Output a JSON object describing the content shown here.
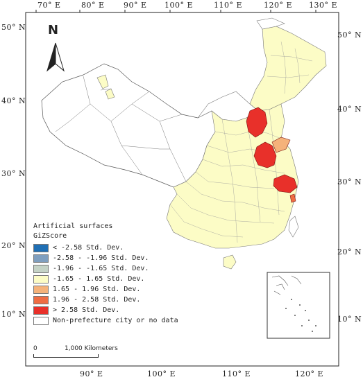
{
  "map": {
    "top_ticks": [
      "70° E",
      "80° E",
      "90° E",
      "100° E",
      "110° E",
      "120° E",
      "130° E"
    ],
    "bottom_ticks": [
      "90° E",
      "100° E",
      "110° E",
      "120° E"
    ],
    "left_ticks": [
      "50° N",
      "40° N",
      "30° N",
      "20° N",
      "10° N"
    ],
    "right_ticks": [
      "50° N",
      "40° N",
      "30° N",
      "20° N",
      "10° N"
    ],
    "north_label": "N"
  },
  "legend": {
    "title1": "Artificial surfaces",
    "title2": "GiZScore",
    "items": [
      {
        "label": "< -2.58 Std. Dev.",
        "color": "#1f6fb4"
      },
      {
        "label": "-2.58 - -1.96 Std. Dev.",
        "color": "#7f9fbf"
      },
      {
        "label": "-1.96 - -1.65 Std. Dev.",
        "color": "#c5d3c6"
      },
      {
        "label": "-1.65 - 1.65 Std. Dev.",
        "color": "#fcfcc6"
      },
      {
        "label": "1.65 - 1.96 Std. Dev.",
        "color": "#f5b27a"
      },
      {
        "label": "1.96 - 2.58 Std. Dev.",
        "color": "#ef6c43"
      },
      {
        "label": "> 2.58 Std. Dev.",
        "color": "#e8302a"
      },
      {
        "label": "Non-prefecture city or no data",
        "color": "#ffffff"
      }
    ]
  },
  "scale": {
    "start": "0",
    "end": "1,000 Kilometers"
  }
}
